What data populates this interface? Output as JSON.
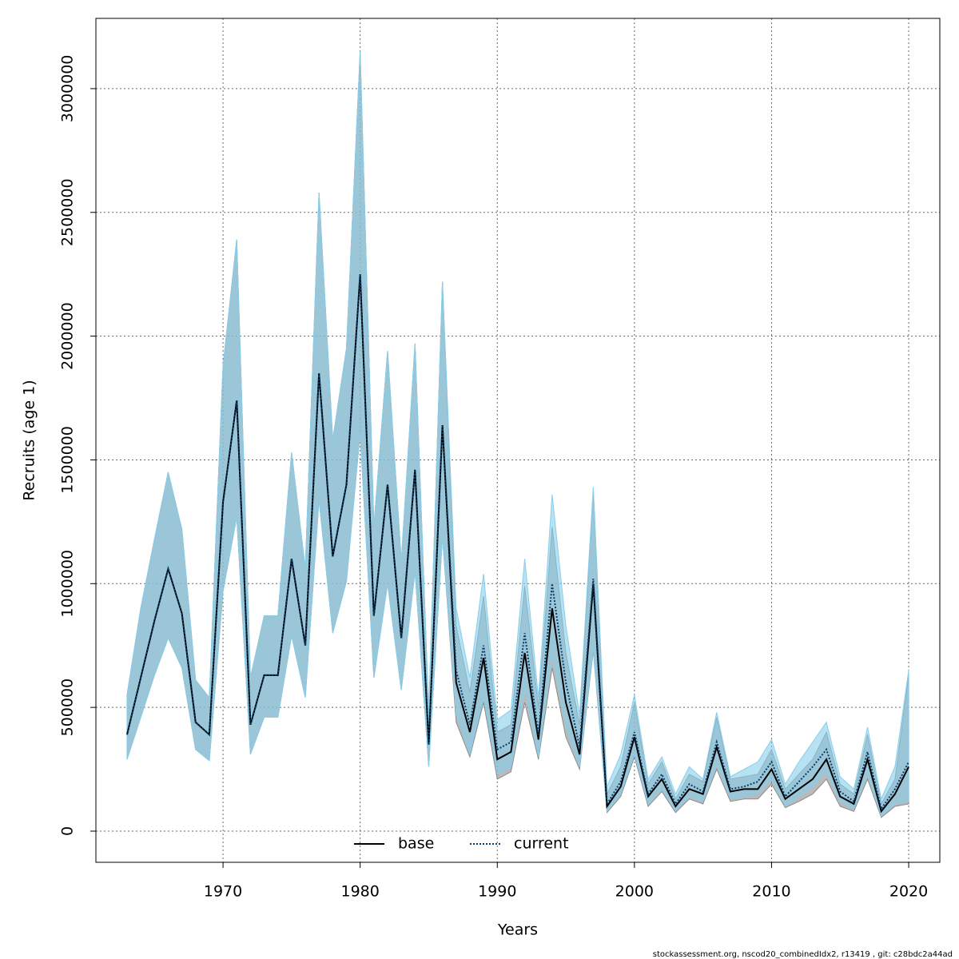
{
  "chart_data": {
    "type": "band-line",
    "xlabel": "Years",
    "ylabel": "Recruits (age 1)",
    "footnote": "stockassessment.org, nscod20_combinedIdx2, r13419 , git: c28bdc2a44ad",
    "x": [
      1963,
      1964,
      1965,
      1966,
      1967,
      1968,
      1969,
      1970,
      1971,
      1972,
      1973,
      1974,
      1975,
      1976,
      1977,
      1978,
      1979,
      1980,
      1981,
      1982,
      1983,
      1984,
      1985,
      1986,
      1987,
      1988,
      1989,
      1990,
      1991,
      1992,
      1993,
      1994,
      1995,
      1996,
      1997,
      1998,
      1999,
      2000,
      2001,
      2002,
      2003,
      2004,
      2005,
      2006,
      2007,
      2008,
      2009,
      2010,
      2011,
      2012,
      2013,
      2014,
      2015,
      2016,
      2017,
      2018,
      2019,
      2020
    ],
    "xlim": [
      1960.73,
      2022.27
    ],
    "xticks": [
      1970,
      1980,
      1990,
      2000,
      2010,
      2020
    ],
    "ylim": [
      -125930,
      3283900
    ],
    "yticks": [
      0,
      500000,
      1000000,
      1500000,
      2000000,
      2500000,
      3000000
    ],
    "grid": true,
    "legend": "bottom",
    "series": [
      {
        "name": "base",
        "color": "#000000",
        "band_color": "#8c8c8c",
        "dash": "solid",
        "values": [
          390000,
          620000,
          850000,
          1060000,
          880000,
          440000,
          390000,
          1330000,
          1740000,
          430000,
          630000,
          630000,
          1100000,
          750000,
          1850000,
          1110000,
          1400000,
          2250000,
          870000,
          1400000,
          780000,
          1460000,
          350000,
          1640000,
          600000,
          400000,
          700000,
          290000,
          320000,
          720000,
          370000,
          900000,
          520000,
          310000,
          1000000,
          100000,
          180000,
          380000,
          140000,
          210000,
          100000,
          170000,
          150000,
          340000,
          160000,
          170000,
          170000,
          250000,
          130000,
          170000,
          210000,
          290000,
          140000,
          110000,
          290000,
          80000,
          150000,
          260000
        ],
        "lower": [
          290000,
          460000,
          630000,
          780000,
          660000,
          330000,
          285000,
          970000,
          1270000,
          310000,
          460000,
          460000,
          790000,
          540000,
          1340000,
          800000,
          1010000,
          1610000,
          620000,
          1000000,
          570000,
          1050000,
          260000,
          1190000,
          440000,
          300000,
          520000,
          210000,
          240000,
          520000,
          290000,
          660000,
          380000,
          250000,
          730000,
          75000,
          140000,
          300000,
          100000,
          160000,
          75000,
          130000,
          110000,
          250000,
          120000,
          130000,
          130000,
          190000,
          95000,
          120000,
          150000,
          210000,
          100000,
          80000,
          210000,
          55000,
          100000,
          110000
        ],
        "upper": [
          550000,
          900000,
          1180000,
          1450000,
          1220000,
          610000,
          540000,
          1880000,
          2390000,
          620000,
          870000,
          870000,
          1530000,
          1060000,
          2580000,
          1580000,
          1950000,
          3150000,
          1230000,
          1940000,
          1090000,
          1970000,
          480000,
          2220000,
          830000,
          560000,
          950000,
          400000,
          430000,
          990000,
          500000,
          1230000,
          720000,
          430000,
          1380000,
          150000,
          260000,
          520000,
          190000,
          280000,
          130000,
          230000,
          200000,
          460000,
          210000,
          220000,
          230000,
          330000,
          170000,
          230000,
          290000,
          400000,
          190000,
          150000,
          390000,
          110000,
          210000,
          630000
        ]
      },
      {
        "name": "current",
        "color": "#0b3d6b",
        "band_color": "#87ceeb",
        "dash": "dotted",
        "values": [
          390000,
          620000,
          850000,
          1060000,
          880000,
          440000,
          390000,
          1330000,
          1740000,
          430000,
          630000,
          630000,
          1100000,
          750000,
          1850000,
          1110000,
          1400000,
          2250000,
          870000,
          1400000,
          780000,
          1460000,
          350000,
          1640000,
          650000,
          430000,
          750000,
          330000,
          360000,
          800000,
          390000,
          1000000,
          600000,
          340000,
          1020000,
          110000,
          200000,
          400000,
          150000,
          230000,
          110000,
          190000,
          160000,
          360000,
          170000,
          180000,
          200000,
          280000,
          140000,
          200000,
          260000,
          330000,
          160000,
          120000,
          320000,
          90000,
          170000,
          280000
        ],
        "lower": [
          290000,
          460000,
          630000,
          780000,
          660000,
          330000,
          285000,
          970000,
          1270000,
          310000,
          460000,
          460000,
          790000,
          540000,
          1340000,
          800000,
          1010000,
          1610000,
          620000,
          1000000,
          570000,
          1050000,
          260000,
          1190000,
          470000,
          310000,
          540000,
          230000,
          260000,
          580000,
          300000,
          720000,
          420000,
          260000,
          740000,
          80000,
          150000,
          310000,
          110000,
          170000,
          80000,
          140000,
          120000,
          270000,
          130000,
          140000,
          150000,
          210000,
          100000,
          140000,
          180000,
          240000,
          120000,
          90000,
          230000,
          60000,
          110000,
          120000
        ],
        "upper": [
          550000,
          900000,
          1180000,
          1450000,
          1220000,
          610000,
          540000,
          1880000,
          2390000,
          620000,
          870000,
          870000,
          1530000,
          1060000,
          2580000,
          1580000,
          1950000,
          3150000,
          1230000,
          1940000,
          1090000,
          1970000,
          480000,
          2220000,
          900000,
          620000,
          1040000,
          450000,
          490000,
          1100000,
          540000,
          1360000,
          830000,
          470000,
          1390000,
          180000,
          310000,
          550000,
          210000,
          300000,
          150000,
          260000,
          210000,
          480000,
          220000,
          250000,
          280000,
          370000,
          190000,
          280000,
          360000,
          440000,
          220000,
          170000,
          420000,
          130000,
          260000,
          650000
        ]
      }
    ]
  }
}
